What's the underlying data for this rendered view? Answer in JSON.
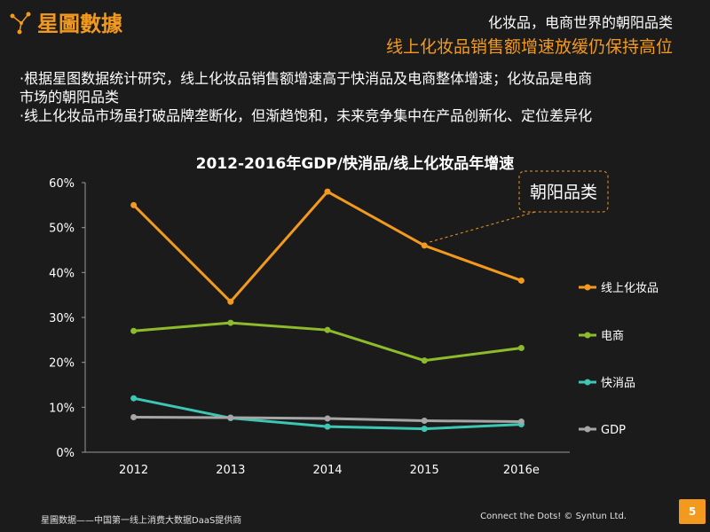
{
  "brand": {
    "logo_text": "星圖數據"
  },
  "header": {
    "top": "化妆品，电商世界的朝阳品类",
    "subtitle": "线上化妆品销售额增速放缓仍保持高位"
  },
  "bullets": [
    "·根据星图数据统计研究，线上化妆品销售额增速高于快消品及电商整体增速；化妆品是电商",
    "市场的朝阳品类",
    "·线上化妆品市场虽打破品牌垄断化，但渐趋饱和，未来竞争集中在产品创新化、定位差异化"
  ],
  "chart_data": {
    "type": "line",
    "title": "2012-2016年GDP/快消品/线上化妆品年增速",
    "categories": [
      "2012",
      "2013",
      "2014",
      "2015",
      "2016e"
    ],
    "y_ticks": [
      "0%",
      "10%",
      "20%",
      "30%",
      "40%",
      "50%",
      "60%"
    ],
    "ylim": [
      0,
      60
    ],
    "grid": false,
    "legend_position": "right",
    "series": [
      {
        "name": "线上化妆品",
        "color": "#f39a1e",
        "values": [
          55,
          33.5,
          58,
          46,
          38.2
        ]
      },
      {
        "name": "电商",
        "color": "#8dbb2c",
        "values": [
          27,
          28.8,
          27.2,
          20.4,
          23.2
        ]
      },
      {
        "name": "快消品",
        "color": "#3cc7b4",
        "values": [
          12,
          7.6,
          5.7,
          5.2,
          6.2
        ]
      },
      {
        "name": "GDP",
        "color": "#a6a6a6",
        "values": [
          7.8,
          7.7,
          7.5,
          7.0,
          6.8
        ]
      }
    ],
    "annotation": {
      "text": "朝阳品类",
      "series": "线上化妆品",
      "category": "2015"
    }
  },
  "footer": {
    "left": "星圖数据——中国第一线上消费大数据DaaS提供商",
    "right": "Connect the Dots! © Syntun Ltd.",
    "page": "5"
  }
}
